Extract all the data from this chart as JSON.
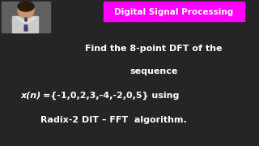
{
  "bg_color": "#252525",
  "title_box_color": "#ff00ff",
  "title_text": "Digital Signal Processing",
  "title_text_color": "#ffffff",
  "line1": "Find the 8-point DFT of the",
  "line2": "sequence",
  "line3_italic": "x(n)",
  "line3_normal": "={-1,0,2,3,-4,-2,0,5} using",
  "line4": "Radix-2 DIT – FFT  algorithm.",
  "main_text_color": "#ffffff",
  "title_fontsize": 7.5,
  "body_fontsize": 8.0,
  "math_fontsize": 8.0,
  "photo_bg": "#888888",
  "photo_skin": "#c8956c",
  "photo_shirt": "#4a5a7a",
  "photo_hair": "#2a1a0a"
}
